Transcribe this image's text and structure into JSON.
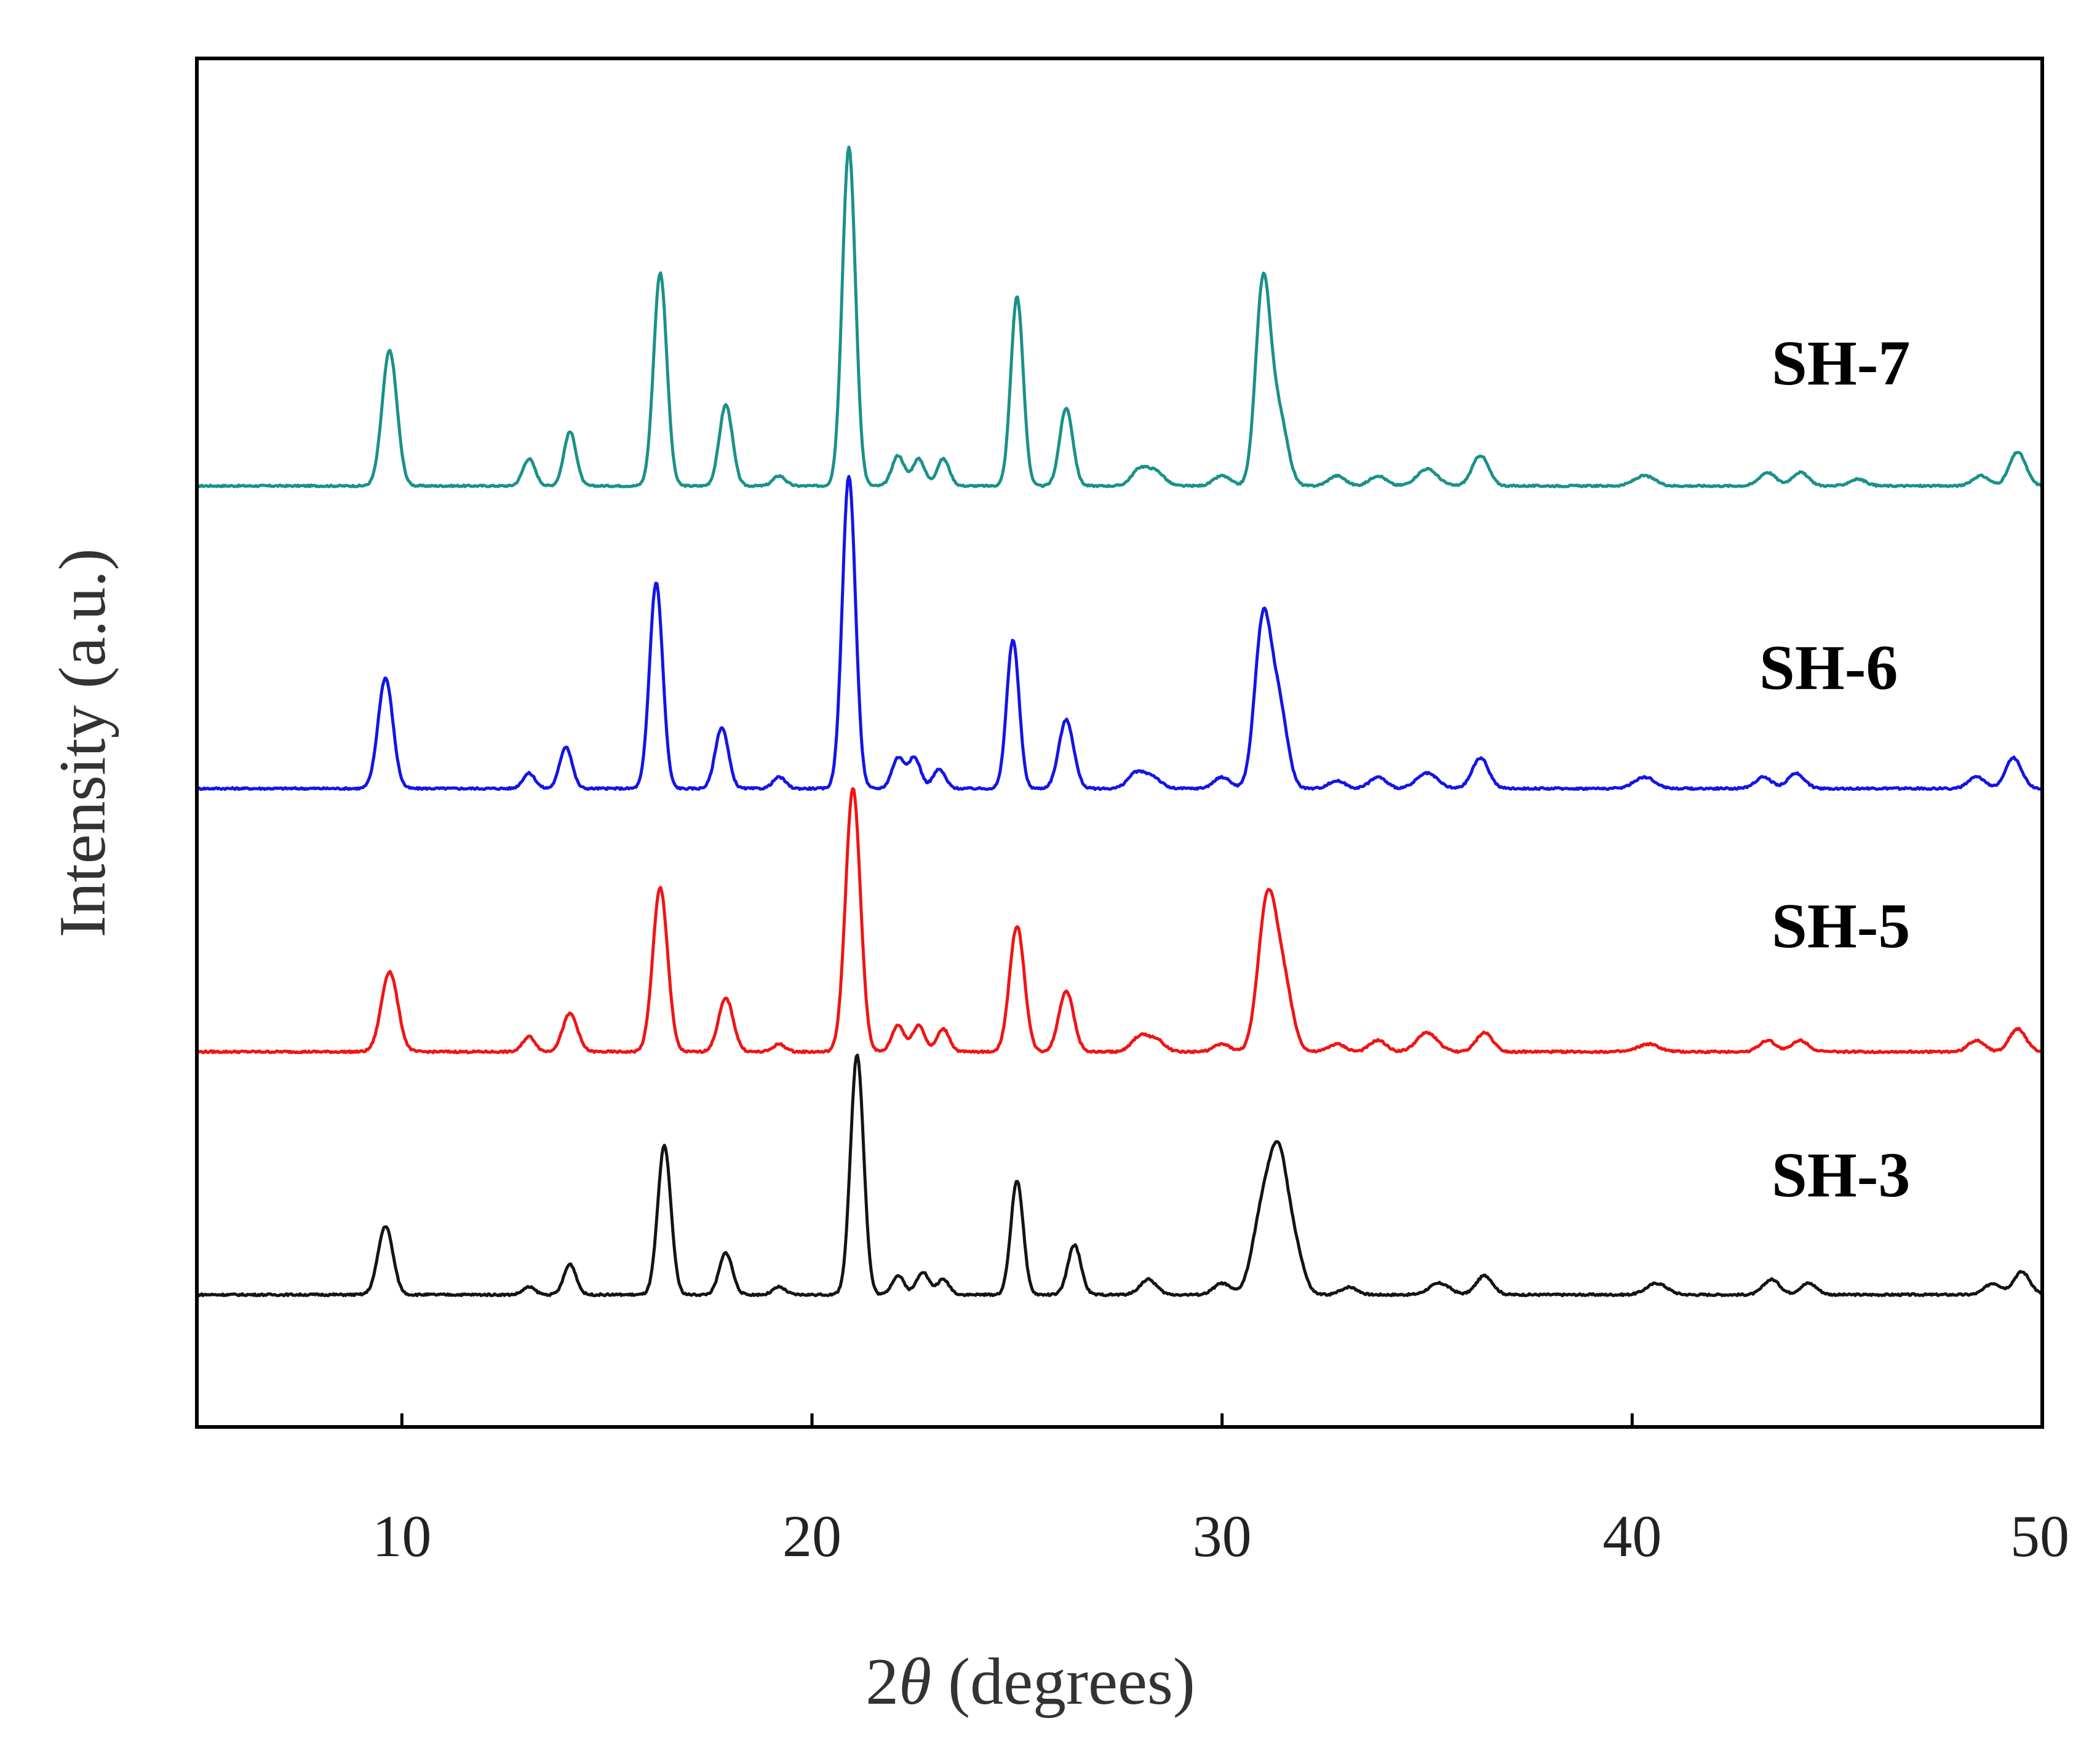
{
  "chart_data": {
    "type": "line",
    "title": "",
    "xlabel_prefix": "2",
    "xlabel_symbol": "θ",
    "xlabel_suffix": " (degrees)",
    "ylabel": "Intensity (a.u.)",
    "xlim": [
      5,
      50
    ],
    "xticks": [
      10,
      20,
      30,
      40,
      50
    ],
    "yticks": [],
    "grid": false,
    "legend": "inline labels at right",
    "series": [
      {
        "name": "SH-7",
        "color": "#1a9189",
        "offset": 9.4,
        "peaks": [
          [
            9.7,
            4.0,
            0.18
          ],
          [
            13.1,
            0.8,
            0.15
          ],
          [
            14.1,
            1.6,
            0.15
          ],
          [
            16.3,
            6.3,
            0.16
          ],
          [
            17.9,
            2.4,
            0.16
          ],
          [
            19.2,
            0.3,
            0.15
          ],
          [
            20.9,
            10.0,
            0.16
          ],
          [
            22.1,
            0.9,
            0.15
          ],
          [
            22.6,
            0.8,
            0.15
          ],
          [
            23.2,
            0.8,
            0.15
          ],
          [
            25.0,
            5.6,
            0.15
          ],
          [
            26.2,
            2.3,
            0.16
          ],
          [
            28.0,
            0.5,
            0.2
          ],
          [
            28.4,
            0.4,
            0.2
          ],
          [
            30.0,
            0.3,
            0.2
          ],
          [
            31.0,
            6.0,
            0.18
          ],
          [
            31.4,
            2.0,
            0.2
          ],
          [
            32.8,
            0.3,
            0.2
          ],
          [
            33.8,
            0.3,
            0.2
          ],
          [
            35.0,
            0.5,
            0.25
          ],
          [
            36.3,
            0.9,
            0.2
          ],
          [
            40.3,
            0.3,
            0.25
          ],
          [
            43.3,
            0.4,
            0.2
          ],
          [
            44.1,
            0.4,
            0.2
          ],
          [
            45.5,
            0.2,
            0.2
          ],
          [
            48.5,
            0.3,
            0.2
          ],
          [
            49.4,
            1.0,
            0.2
          ]
        ]
      },
      {
        "name": "SH-6",
        "color": "#1414e6",
        "offset": 0,
        "peaks": [
          [
            9.6,
            2.9,
            0.18
          ],
          [
            13.1,
            0.4,
            0.15
          ],
          [
            14.0,
            1.1,
            0.15
          ],
          [
            16.2,
            5.4,
            0.16
          ],
          [
            17.8,
            1.6,
            0.16
          ],
          [
            19.2,
            0.3,
            0.15
          ],
          [
            20.9,
            8.2,
            0.16
          ],
          [
            22.1,
            0.8,
            0.15
          ],
          [
            22.5,
            0.8,
            0.15
          ],
          [
            23.1,
            0.5,
            0.15
          ],
          [
            24.9,
            3.9,
            0.15
          ],
          [
            26.2,
            1.8,
            0.18
          ],
          [
            27.9,
            0.4,
            0.2
          ],
          [
            28.3,
            0.3,
            0.2
          ],
          [
            30.0,
            0.3,
            0.2
          ],
          [
            31.0,
            4.4,
            0.2
          ],
          [
            31.4,
            2.0,
            0.2
          ],
          [
            32.8,
            0.2,
            0.2
          ],
          [
            33.8,
            0.3,
            0.2
          ],
          [
            35.0,
            0.4,
            0.25
          ],
          [
            36.3,
            0.8,
            0.2
          ],
          [
            40.3,
            0.3,
            0.25
          ],
          [
            43.2,
            0.3,
            0.2
          ],
          [
            44.0,
            0.4,
            0.2
          ],
          [
            48.4,
            0.3,
            0.2
          ],
          [
            49.3,
            0.8,
            0.2
          ]
        ]
      },
      {
        "name": "SH-5",
        "color": "#f01414",
        "offset": 0,
        "peaks": [
          [
            9.7,
            2.1,
            0.2
          ],
          [
            13.1,
            0.4,
            0.15
          ],
          [
            14.1,
            1.0,
            0.18
          ],
          [
            16.3,
            4.3,
            0.18
          ],
          [
            17.9,
            1.4,
            0.18
          ],
          [
            19.2,
            0.2,
            0.15
          ],
          [
            21.0,
            6.9,
            0.18
          ],
          [
            22.1,
            0.7,
            0.15
          ],
          [
            22.6,
            0.7,
            0.15
          ],
          [
            23.2,
            0.6,
            0.15
          ],
          [
            25.0,
            3.3,
            0.18
          ],
          [
            26.2,
            1.6,
            0.18
          ],
          [
            28.0,
            0.4,
            0.2
          ],
          [
            28.4,
            0.3,
            0.2
          ],
          [
            30.0,
            0.2,
            0.2
          ],
          [
            31.1,
            3.9,
            0.22
          ],
          [
            31.5,
            1.7,
            0.22
          ],
          [
            32.8,
            0.2,
            0.2
          ],
          [
            33.8,
            0.3,
            0.2
          ],
          [
            35.0,
            0.5,
            0.25
          ],
          [
            36.4,
            0.5,
            0.2
          ],
          [
            40.4,
            0.2,
            0.25
          ],
          [
            43.3,
            0.3,
            0.2
          ],
          [
            44.1,
            0.3,
            0.2
          ],
          [
            48.4,
            0.3,
            0.2
          ],
          [
            49.4,
            0.6,
            0.2
          ]
        ]
      },
      {
        "name": "SH-3",
        "color": "#141414",
        "offset": 0,
        "peaks": [
          [
            9.6,
            1.8,
            0.18
          ],
          [
            13.1,
            0.2,
            0.15
          ],
          [
            14.1,
            0.8,
            0.15
          ],
          [
            16.4,
            3.9,
            0.16
          ],
          [
            17.9,
            1.1,
            0.16
          ],
          [
            19.2,
            0.2,
            0.15
          ],
          [
            21.1,
            6.3,
            0.16
          ],
          [
            22.1,
            0.5,
            0.15
          ],
          [
            22.7,
            0.6,
            0.15
          ],
          [
            23.2,
            0.4,
            0.15
          ],
          [
            25.0,
            3.0,
            0.15
          ],
          [
            26.4,
            1.3,
            0.16
          ],
          [
            28.2,
            0.4,
            0.2
          ],
          [
            30.0,
            0.3,
            0.2
          ],
          [
            31.0,
            2.2,
            0.25
          ],
          [
            31.4,
            3.2,
            0.22
          ],
          [
            31.8,
            1.0,
            0.2
          ],
          [
            33.1,
            0.2,
            0.2
          ],
          [
            35.3,
            0.3,
            0.25
          ],
          [
            36.4,
            0.5,
            0.2
          ],
          [
            40.6,
            0.3,
            0.25
          ],
          [
            43.4,
            0.4,
            0.2
          ],
          [
            44.3,
            0.3,
            0.2
          ],
          [
            48.8,
            0.3,
            0.2
          ],
          [
            49.5,
            0.6,
            0.2
          ]
        ]
      }
    ]
  }
}
